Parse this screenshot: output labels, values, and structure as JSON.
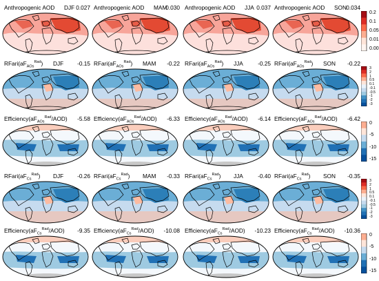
{
  "panels": [
    {
      "label": "Anthropogenic AOD",
      "season": "DJF",
      "value": "0.027"
    },
    {
      "label": "Anthropogenic AOD",
      "season": "MAM",
      "value": "0.030"
    },
    {
      "label": "Anthropogenic AOD",
      "season": "JJA",
      "value": "0.037"
    },
    {
      "label": "Anthropogenic AOD",
      "season": "SON",
      "value": "0.034"
    },
    {
      "label": "RFari(aF",
      "sub": "AOs",
      "sup": "Rad",
      "close": ")",
      "season": "DJF",
      "value": "-0.15"
    },
    {
      "label": "RFari(aF",
      "sub": "AOs",
      "sup": "Rad",
      "close": ")",
      "season": "MAM",
      "value": "-0.22"
    },
    {
      "label": "RFari(aF",
      "sub": "AOs",
      "sup": "Rad",
      "close": ")",
      "season": "JJA",
      "value": "-0.25"
    },
    {
      "label": "RFari(aF",
      "sub": "AOs",
      "sup": "Rad",
      "close": ")",
      "season": "SON",
      "value": "-0.22"
    },
    {
      "label": "Efficiency(aF",
      "sub": "AOs",
      "sup": "Rad",
      "close": "/AOD)",
      "season": "",
      "value": "-5.58"
    },
    {
      "label": "Efficiency(aF",
      "sub": "AOs",
      "sup": "Rad",
      "close": "/AOD)",
      "season": "",
      "value": "-6.33"
    },
    {
      "label": "Efficiency(aF",
      "sub": "AOs",
      "sup": "Rad",
      "close": "/AOD)",
      "season": "",
      "value": "-6.14"
    },
    {
      "label": "Efficiency(aF",
      "sub": "AOs",
      "sup": "Rad",
      "close": "/AOD)",
      "season": "",
      "value": "-6.42"
    },
    {
      "label": "RFari(aF",
      "sub": "Cs",
      "sup": "Rad",
      "close": ")",
      "season": "DJF",
      "value": "-0.26"
    },
    {
      "label": "RFari(aF",
      "sub": "Cs",
      "sup": "Rad",
      "close": ")",
      "season": "MAM",
      "value": "-0.33"
    },
    {
      "label": "RFari(aF",
      "sub": "Cs",
      "sup": "Rad",
      "close": ")",
      "season": "JJA",
      "value": "-0.40"
    },
    {
      "label": "RFari(aF",
      "sub": "Cs",
      "sup": "Rad",
      "close": ")",
      "season": "SON",
      "value": "-0.35"
    },
    {
      "label": "Efficiency(aF",
      "sub": "Cs",
      "sup": "Rad",
      "close": "/AOD)",
      "season": "",
      "value": "-9.35"
    },
    {
      "label": "Efficiency(aF",
      "sub": "Cs",
      "sup": "Rad",
      "close": "/AOD)",
      "season": "",
      "value": "-10.08"
    },
    {
      "label": "Efficiency(aF",
      "sub": "Cs",
      "sup": "Rad",
      "close": "/AOD)",
      "season": "",
      "value": "-10.23"
    },
    {
      "label": "Efficiency(aF",
      "sub": "Cs",
      "sup": "Rad",
      "close": "/AOD)",
      "season": "",
      "value": "-10.36"
    }
  ],
  "colorbars": [
    {
      "ticks": [
        "0.2",
        "0.1",
        "0.05",
        "0.01",
        "0.005"
      ],
      "colors": [
        "#a50f15",
        "#de2d26",
        "#fb6a4a",
        "#fcae91",
        "#fee5d9",
        "#fff5f0"
      ]
    },
    {
      "ticks": [
        "3",
        "2",
        "1",
        "0.5",
        "0.1",
        "-0.1",
        "-0.5",
        "-1",
        "-2",
        "-3"
      ],
      "colors": [
        "#a50f15",
        "#de2d26",
        "#fb6a4a",
        "#fcae91",
        "#fee5d9",
        "#eaf3fb",
        "#c6dbef",
        "#9ecae1",
        "#4292c6",
        "#2171b5",
        "#08519c"
      ]
    },
    {
      "ticks": [
        "0",
        "-5",
        "-10",
        "-15"
      ],
      "colors": [
        "#fcae91",
        "#fee5d9",
        "#c6dbef",
        "#6baed6",
        "#2171b5",
        "#08519c"
      ]
    },
    {
      "ticks": [
        "3",
        "2",
        "1",
        "0.5",
        "0.1",
        "-0.1",
        "-0.5",
        "-1",
        "-2",
        "-3"
      ],
      "colors": [
        "#a50f15",
        "#de2d26",
        "#fb6a4a",
        "#fcae91",
        "#fee5d9",
        "#eaf3fb",
        "#c6dbef",
        "#9ecae1",
        "#4292c6",
        "#2171b5",
        "#08519c"
      ]
    },
    {
      "ticks": [
        "0",
        "-5",
        "-10",
        "-15"
      ],
      "colors": [
        "#fcae91",
        "#fee5d9",
        "#c6dbef",
        "#6baed6",
        "#2171b5",
        "#08519c"
      ]
    }
  ],
  "colors": {
    "aod_base": "#fde0dc",
    "aod_mid": "#f7a59a",
    "aod_high": "#e34a33",
    "rf_base": "#c6dbef",
    "rf_neg": "#6baed6",
    "rf_strong": "#2c7fb8",
    "rf_pos": "#fcbba1",
    "eff_base": "#f4f8fc",
    "eff_mid": "#9ecae1",
    "eff_strong": "#2171b5",
    "eff_pos": "#fcbba1",
    "land_gray": "#c8c8c8",
    "coast": "#000000"
  }
}
